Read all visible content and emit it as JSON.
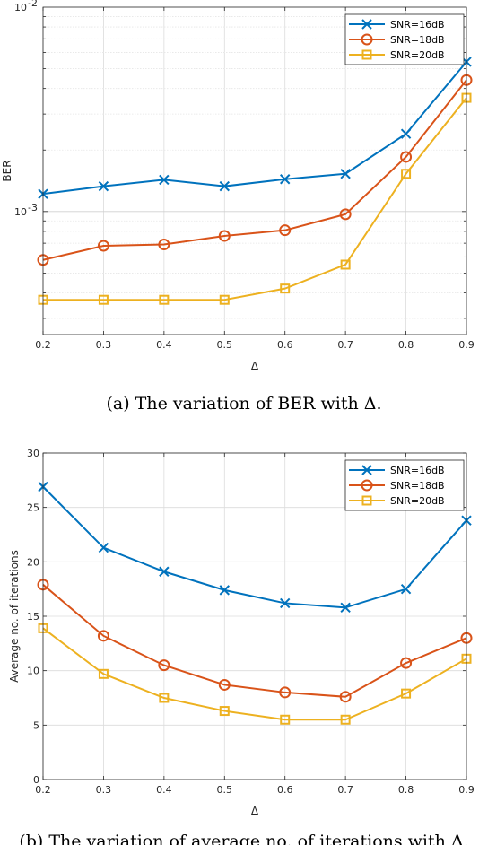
{
  "colors": {
    "snr16": "#0072BD",
    "snr18": "#D95319",
    "snr20": "#EDB120"
  },
  "chart_data": [
    {
      "type": "line",
      "caption": "(a) The variation of BER with Δ.",
      "xlabel": "Δ",
      "ylabel": "BER",
      "yscale": "log",
      "ylim": [
        0.00025,
        0.01
      ],
      "xlim": [
        0.2,
        0.9
      ],
      "x": [
        0.2,
        0.3,
        0.4,
        0.5,
        0.6,
        0.7,
        0.8,
        0.9
      ],
      "xticks": [
        "0.2",
        "0.3",
        "0.4",
        "0.5",
        "0.6",
        "0.7",
        "0.8",
        "0.9"
      ],
      "yticks": [
        {
          "value": 0.001,
          "base": "10",
          "exp": "-3"
        },
        {
          "value": 0.01,
          "base": "10",
          "exp": "-2"
        }
      ],
      "grid": true,
      "legend": "top-right",
      "series": [
        {
          "name": "SNR=16dB",
          "marker": "x",
          "color": "#0072BD",
          "values": [
            0.00122,
            0.00133,
            0.00143,
            0.00133,
            0.00144,
            0.00153,
            0.0024,
            0.0054
          ]
        },
        {
          "name": "SNR=18dB",
          "marker": "o",
          "color": "#D95319",
          "values": [
            0.00058,
            0.00068,
            0.00069,
            0.00076,
            0.00081,
            0.00097,
            0.00185,
            0.0044
          ]
        },
        {
          "name": "SNR=20dB",
          "marker": "s",
          "color": "#EDB120",
          "values": [
            0.00037,
            0.00037,
            0.00037,
            0.00037,
            0.00042,
            0.00055,
            0.00153,
            0.0036
          ]
        }
      ]
    },
    {
      "type": "line",
      "caption": "(b) The variation of average no. of iterations with Δ.",
      "xlabel": "Δ",
      "ylabel": "Average no. of iterations",
      "yscale": "linear",
      "ylim": [
        0,
        30
      ],
      "xlim": [
        0.2,
        0.9
      ],
      "x": [
        0.2,
        0.3,
        0.4,
        0.5,
        0.6,
        0.7,
        0.8,
        0.9
      ],
      "xticks": [
        "0.2",
        "0.3",
        "0.4",
        "0.5",
        "0.6",
        "0.7",
        "0.8",
        "0.9"
      ],
      "yticks": [
        "0",
        "5",
        "10",
        "15",
        "20",
        "25",
        "30"
      ],
      "grid": true,
      "legend": "top-right",
      "series": [
        {
          "name": "SNR=16dB",
          "marker": "x",
          "color": "#0072BD",
          "values": [
            26.9,
            21.3,
            19.1,
            17.4,
            16.2,
            15.8,
            17.5,
            23.8
          ]
        },
        {
          "name": "SNR=18dB",
          "marker": "o",
          "color": "#D95319",
          "values": [
            17.9,
            13.2,
            10.5,
            8.7,
            8.0,
            7.6,
            10.7,
            13.0
          ]
        },
        {
          "name": "SNR=20dB",
          "marker": "s",
          "color": "#EDB120",
          "values": [
            13.9,
            9.7,
            7.5,
            6.3,
            5.5,
            5.5,
            7.9,
            11.1
          ]
        }
      ]
    }
  ]
}
